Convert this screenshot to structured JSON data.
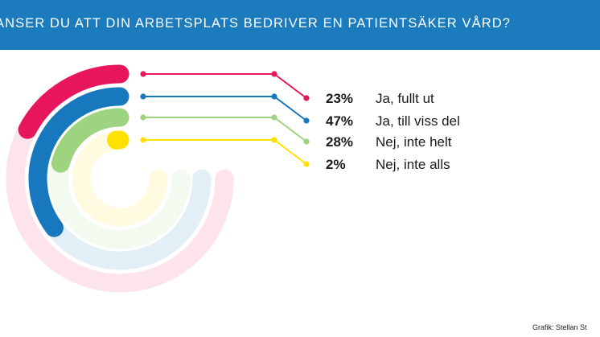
{
  "header": {
    "title": "ANSER DU ATT DIN ARBETSPLATS BEDRIVER EN PATIENTSÄKER VÅRD?"
  },
  "chart_data": {
    "type": "radial-bar",
    "title": "ANSER DU ATT DIN ARBETSPLATS BEDRIVER EN PATIENTSÄKER VÅRD?",
    "value_unit": "%",
    "categories": [
      "Ja, fullt ut",
      "Ja, till viss del",
      "Nej, inte helt",
      "Nej, inte alls"
    ],
    "values": [
      23,
      47,
      28,
      2
    ],
    "value_labels": [
      "23%",
      "47%",
      "28%",
      "2%"
    ],
    "colors": [
      "#e8175d",
      "#1878be",
      "#9ed37f",
      "#ffe100"
    ],
    "legend_position": "right"
  },
  "credit": "Grafik: Stellan St"
}
